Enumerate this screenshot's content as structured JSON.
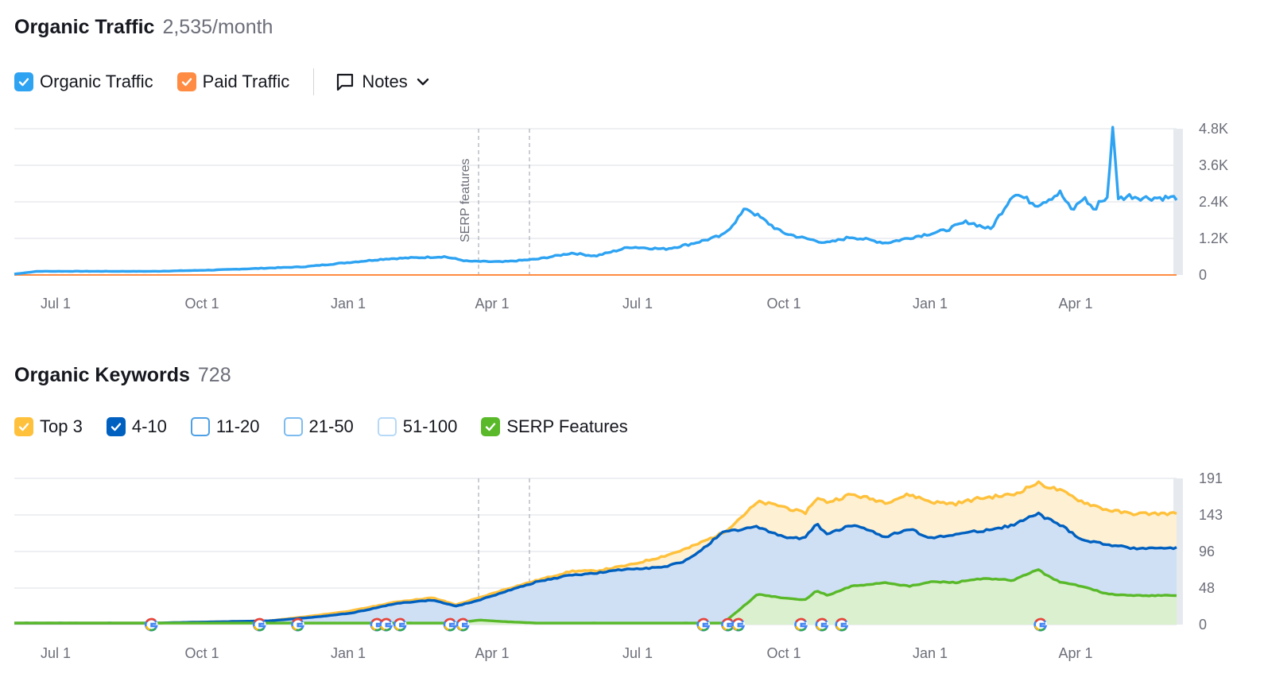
{
  "traffic": {
    "title": "Organic Traffic",
    "metric": "2,535/month",
    "legend": [
      {
        "label": "Organic Traffic",
        "checked": true,
        "color": "#2ea3f2",
        "filled": true
      },
      {
        "label": "Paid Traffic",
        "checked": true,
        "color": "#ff8c42",
        "filled": true
      }
    ],
    "notes_label": "Notes"
  },
  "keywords": {
    "title": "Organic Keywords",
    "metric": "728",
    "legend": [
      {
        "label": "Top 3",
        "checked": true,
        "color": "#ffc13b",
        "filled": true
      },
      {
        "label": "4-10",
        "checked": true,
        "color": "#0060c0",
        "filled": true
      },
      {
        "label": "11-20",
        "checked": false,
        "color": "#4ea0e6",
        "filled": false
      },
      {
        "label": "21-50",
        "checked": false,
        "color": "#7ebcef",
        "filled": false
      },
      {
        "label": "51-100",
        "checked": false,
        "color": "#b6d9f7",
        "filled": false
      },
      {
        "label": "SERP Features",
        "checked": true,
        "color": "#59b929",
        "filled": true
      }
    ]
  },
  "chart_data": [
    {
      "type": "line",
      "title": "Organic Traffic",
      "x_ticks": [
        "Jul 1",
        "Oct 1",
        "Jan 1",
        "Apr 1",
        "Jul 1",
        "Oct 1",
        "Jan 1",
        "Apr 1"
      ],
      "y_ticks": [
        "0",
        "1.2K",
        "2.4K",
        "3.6K",
        "4.8K"
      ],
      "ylim": [
        0,
        4800
      ],
      "annotation": "SERP features",
      "x": [
        0,
        0.02,
        0.12,
        0.17,
        0.25,
        0.32,
        0.37,
        0.39,
        0.42,
        0.45,
        0.48,
        0.5,
        0.53,
        0.56,
        0.58,
        0.61,
        0.63,
        0.66,
        0.68,
        0.7,
        0.72,
        0.75,
        0.78,
        0.8,
        0.82,
        0.84,
        0.86,
        0.88,
        0.9,
        0.91,
        0.92,
        0.93,
        0.935,
        0.94,
        0.945,
        0.95,
        0.96,
        0.97,
        0.98,
        0.99,
        1.0
      ],
      "series": [
        {
          "name": "Organic Traffic",
          "color": "#2ea3f2",
          "values": [
            30,
            120,
            120,
            160,
            270,
            530,
            600,
            450,
            430,
            520,
            720,
            620,
            920,
            850,
            1000,
            1300,
            2200,
            1400,
            1200,
            1050,
            1250,
            1050,
            1300,
            1450,
            1750,
            1500,
            2700,
            2300,
            2700,
            2100,
            2550,
            2100,
            2500,
            2400,
            4800,
            2500,
            2600,
            2535,
            2535,
            2535,
            2535
          ]
        },
        {
          "name": "Paid Traffic",
          "color": "#ff8c42",
          "values": [
            0,
            0,
            0,
            0,
            0,
            0,
            0,
            0,
            0,
            0,
            0,
            0,
            0,
            0,
            0,
            0,
            0,
            0,
            0,
            0,
            0,
            0,
            0,
            0,
            0,
            0,
            0,
            0,
            0,
            0,
            0,
            0,
            0,
            0,
            0,
            0,
            0,
            0,
            0,
            0,
            0
          ]
        }
      ]
    },
    {
      "type": "area",
      "title": "Organic Keywords",
      "x_ticks": [
        "Jul 1",
        "Oct 1",
        "Jan 1",
        "Apr 1",
        "Jul 1",
        "Oct 1",
        "Jan 1",
        "Apr 1"
      ],
      "y_ticks": [
        "0",
        "48",
        "96",
        "143",
        "191"
      ],
      "ylim": [
        0,
        191
      ],
      "x": [
        0,
        0.12,
        0.15,
        0.22,
        0.26,
        0.29,
        0.33,
        0.36,
        0.38,
        0.4,
        0.42,
        0.45,
        0.48,
        0.5,
        0.53,
        0.56,
        0.58,
        0.61,
        0.64,
        0.66,
        0.68,
        0.69,
        0.7,
        0.72,
        0.75,
        0.77,
        0.79,
        0.81,
        0.83,
        0.86,
        0.88,
        0.9,
        0.92,
        0.94,
        0.96,
        1.0
      ],
      "series": [
        {
          "name": "Top 3",
          "color": "#ffc13b",
          "values": [
            2,
            2,
            3,
            5,
            12,
            18,
            30,
            35,
            26,
            35,
            45,
            58,
            70,
            70,
            78,
            90,
            100,
            120,
            160,
            155,
            145,
            165,
            160,
            170,
            160,
            170,
            160,
            158,
            165,
            170,
            185,
            175,
            160,
            150,
            145,
            145
          ]
        },
        {
          "name": "4-10",
          "color": "#0060c0",
          "values": [
            2,
            2,
            3,
            5,
            10,
            15,
            28,
            32,
            24,
            32,
            42,
            56,
            65,
            67,
            73,
            75,
            85,
            120,
            128,
            115,
            112,
            132,
            118,
            130,
            115,
            125,
            113,
            118,
            122,
            130,
            145,
            130,
            110,
            105,
            100,
            100
          ]
        },
        {
          "name": "SERP Features",
          "color": "#59b929",
          "values": [
            2,
            2,
            2,
            2,
            2,
            2,
            2,
            2,
            2,
            6,
            4,
            2,
            2,
            2,
            2,
            2,
            2,
            2,
            40,
            35,
            32,
            44,
            38,
            50,
            55,
            50,
            56,
            55,
            60,
            58,
            72,
            55,
            50,
            40,
            38,
            38
          ]
        }
      ],
      "google_markers": [
        0.118,
        0.211,
        0.244,
        0.312,
        0.32,
        0.332,
        0.375,
        0.386,
        0.593,
        0.614,
        0.623,
        0.677,
        0.695,
        0.712,
        0.883
      ]
    }
  ]
}
